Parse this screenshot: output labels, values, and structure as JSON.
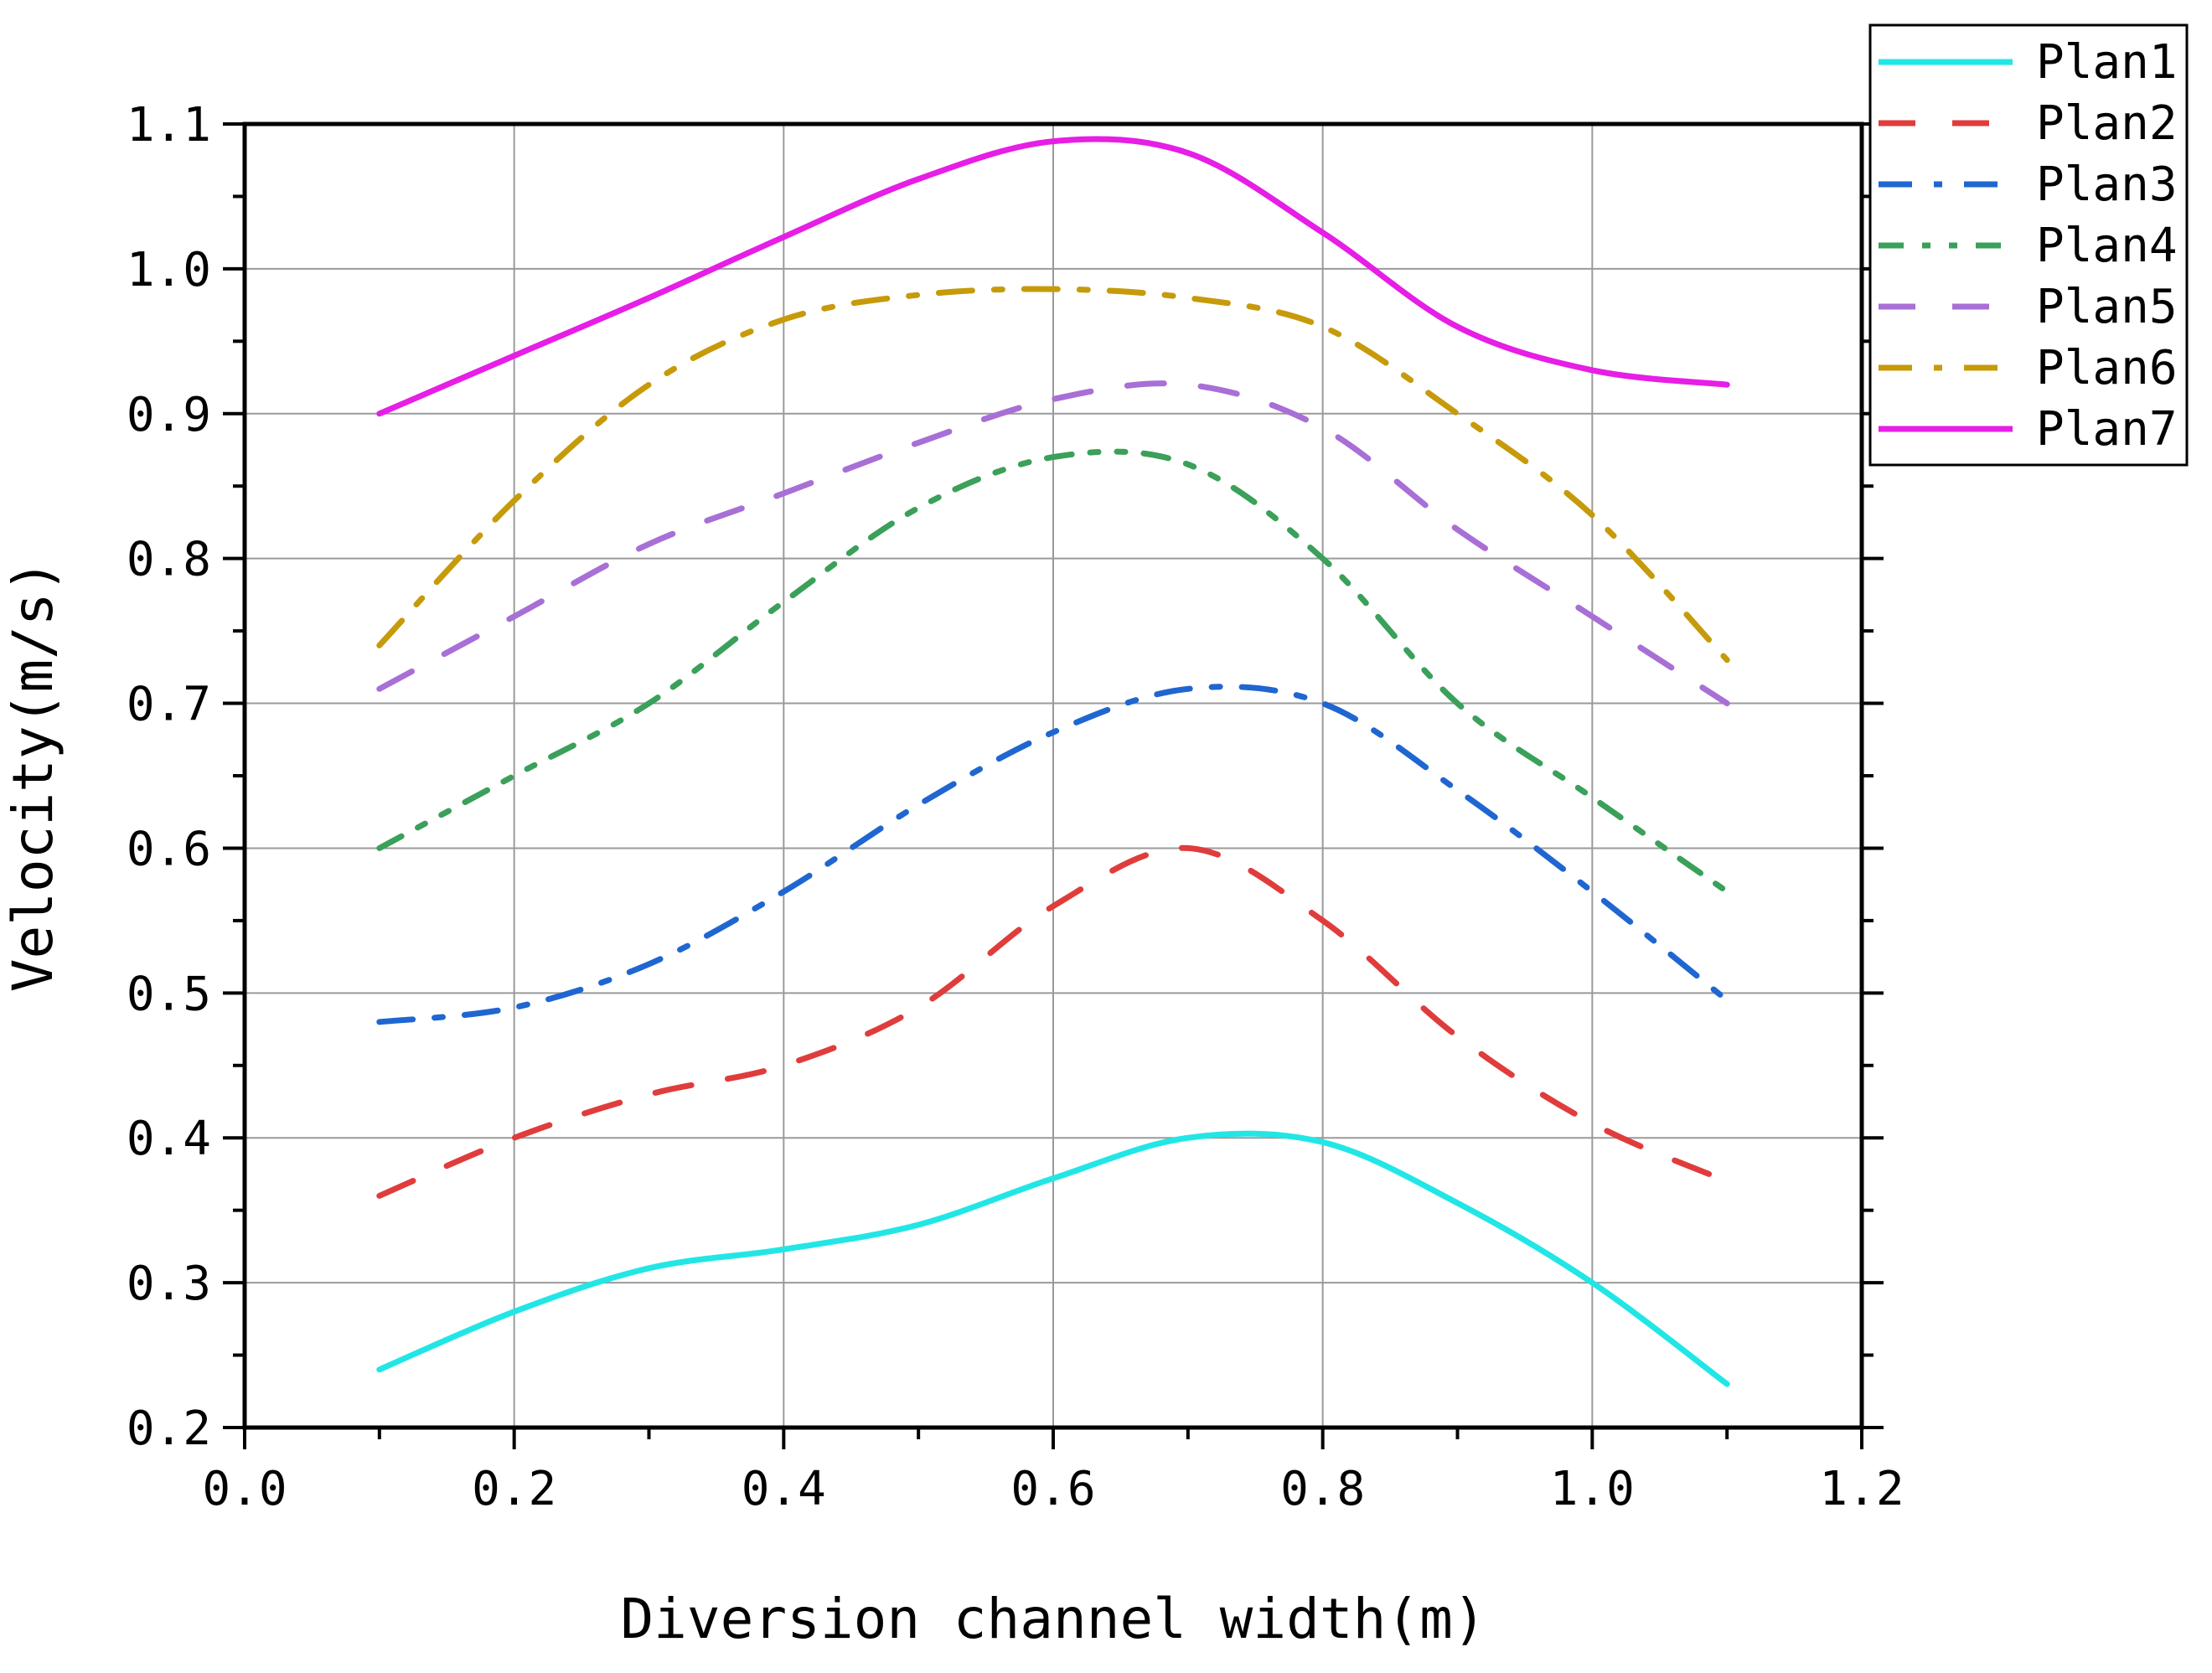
{
  "chart_data": {
    "type": "line",
    "title": "",
    "xlabel": "Diversion channel width(m)",
    "ylabel": "Velocity(m/s)",
    "xlim": [
      0.0,
      1.2
    ],
    "ylim": [
      0.2,
      1.1
    ],
    "grid": true,
    "legend_position": "top-right (outside plot)",
    "x_ticks": [
      0.0,
      0.2,
      0.4,
      0.6,
      0.8,
      1.0,
      1.2
    ],
    "x_tick_labels": [
      "0.0",
      "0.2",
      "0.4",
      "0.6",
      "0.8",
      "1.0",
      "1.2"
    ],
    "y_ticks": [
      0.2,
      0.3,
      0.4,
      0.5,
      0.6,
      0.7,
      0.8,
      0.9,
      1.0,
      1.1
    ],
    "y_tick_labels": [
      "0.2",
      "0.3",
      "0.4",
      "0.5",
      "0.6",
      "0.7",
      "0.8",
      "0.9",
      "1.0",
      "1.1"
    ],
    "x": [
      0.1,
      0.2,
      0.3,
      0.4,
      0.5,
      0.6,
      0.7,
      0.8,
      0.9,
      1.0,
      1.1
    ],
    "series": [
      {
        "name": "Plan1",
        "color": "#22e6e6",
        "style": "solid",
        "values": [
          0.24,
          0.28,
          0.31,
          0.323,
          0.34,
          0.372,
          0.4,
          0.397,
          0.355,
          0.3,
          0.23
        ]
      },
      {
        "name": "Plan2",
        "color": "#e03c3c",
        "style": "dash",
        "values": [
          0.36,
          0.4,
          0.43,
          0.45,
          0.49,
          0.56,
          0.6,
          0.55,
          0.47,
          0.41,
          0.37
        ]
      },
      {
        "name": "Plan3",
        "color": "#1f66d1",
        "style": "dashdot",
        "values": [
          0.48,
          0.49,
          0.52,
          0.57,
          0.63,
          0.68,
          0.71,
          0.7,
          0.64,
          0.57,
          0.495
        ]
      },
      {
        "name": "Plan4",
        "color": "#3aa05a",
        "style": "dashdotdot",
        "values": [
          0.6,
          0.65,
          0.7,
          0.77,
          0.835,
          0.87,
          0.865,
          0.8,
          0.7,
          0.635,
          0.57
        ]
      },
      {
        "name": "Plan5",
        "color": "#a86fd6",
        "style": "dash",
        "values": [
          0.71,
          0.76,
          0.81,
          0.845,
          0.88,
          0.91,
          0.92,
          0.89,
          0.82,
          0.76,
          0.7
        ]
      },
      {
        "name": "Plan6",
        "color": "#c79a0a",
        "style": "dashdot",
        "values": [
          0.74,
          0.84,
          0.92,
          0.965,
          0.982,
          0.986,
          0.98,
          0.96,
          0.9,
          0.83,
          0.73
        ]
      },
      {
        "name": "Plan7",
        "color": "#e61ee6",
        "style": "solid",
        "values": [
          0.9,
          0.94,
          0.98,
          1.022,
          1.062,
          1.088,
          1.08,
          1.025,
          0.96,
          0.93,
          0.92
        ]
      }
    ]
  }
}
